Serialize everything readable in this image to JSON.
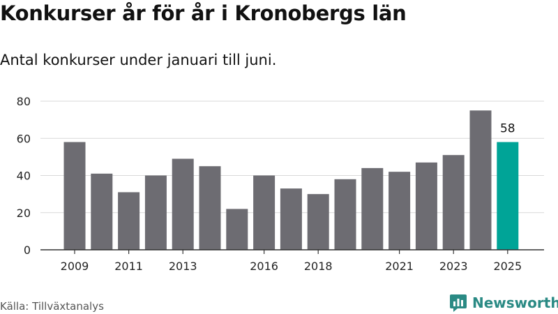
{
  "header": {
    "title": "Konkurser år för år i Kronobergs län",
    "subtitle": "Antal konkurser under januari till juni."
  },
  "footer": {
    "source": "Källa: Tillväxtanalys",
    "brand": "Newsworthy",
    "brand_icon": "newsworthy-logo-icon"
  },
  "colors": {
    "bar": "#6d6c72",
    "highlight": "#00a497",
    "grid": "#d9d9d9",
    "axis": "#333333",
    "brand": "#2a8a84"
  },
  "chart_data": {
    "type": "bar",
    "categories": [
      "2009",
      "2010",
      "2011",
      "2012",
      "2013",
      "2014",
      "2015",
      "2016",
      "2017",
      "2018",
      "2019",
      "2020",
      "2021",
      "2022",
      "2023",
      "2024",
      "2025"
    ],
    "values": [
      58,
      41,
      31,
      40,
      49,
      45,
      22,
      40,
      33,
      30,
      38,
      44,
      42,
      47,
      51,
      75,
      58
    ],
    "x_tick_labels": [
      "2009",
      "2011",
      "2013",
      "2016",
      "2018",
      "2021",
      "2023",
      "2025"
    ],
    "highlight_category": "2025",
    "data_labels": [
      {
        "category": "2025",
        "text": "58"
      }
    ],
    "ylim": [
      0,
      80
    ],
    "yticks": [
      0,
      20,
      40,
      60,
      80
    ],
    "grid": true,
    "legend": "none",
    "title": "",
    "xlabel": "",
    "ylabel": ""
  }
}
